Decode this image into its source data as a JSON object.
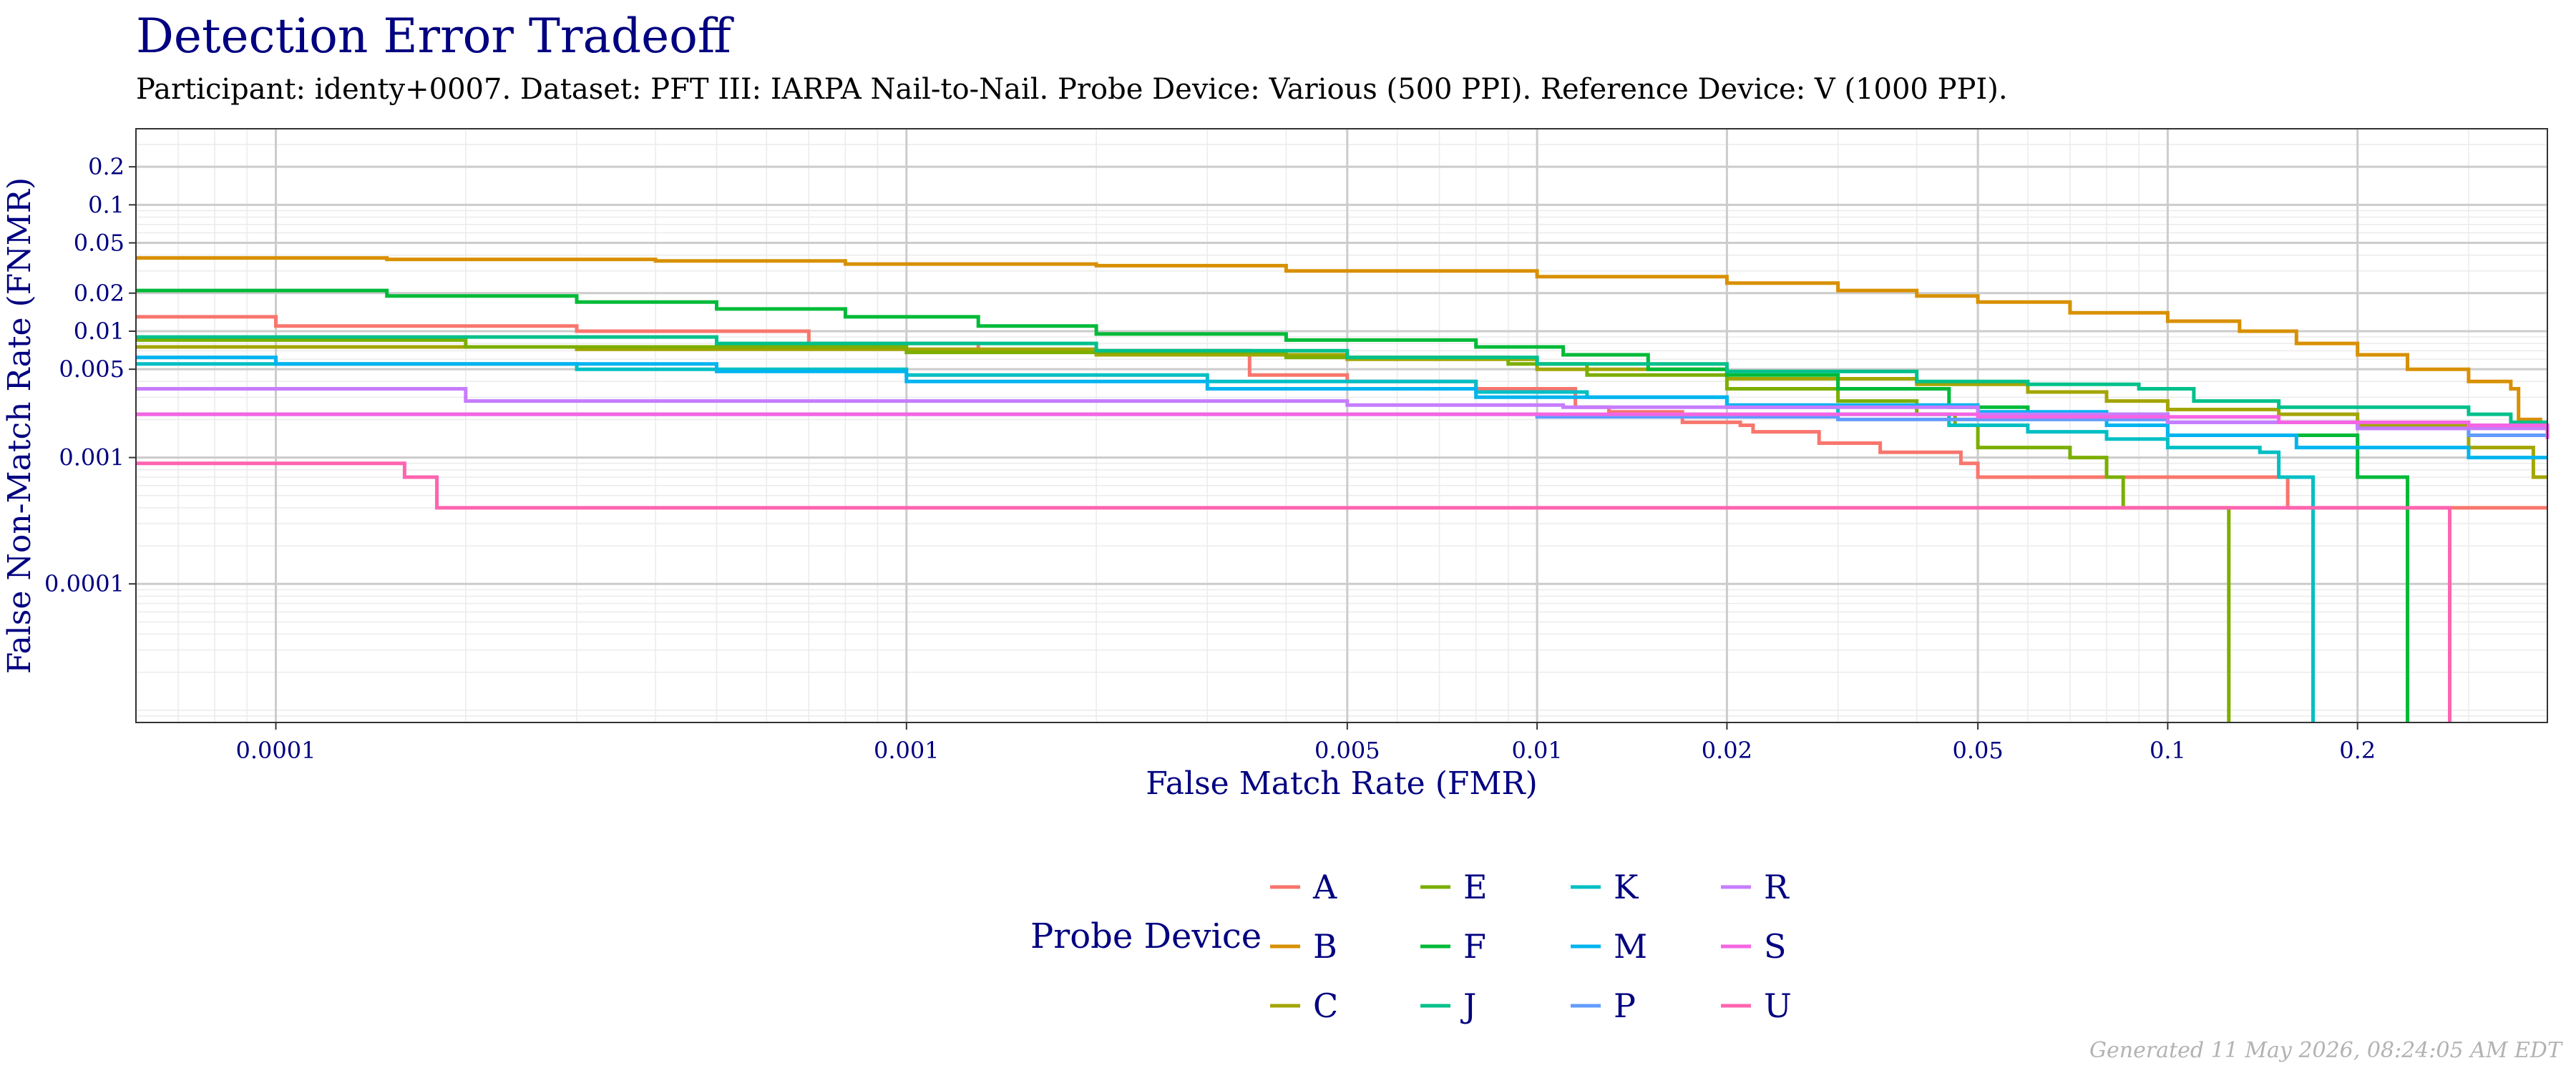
{
  "title": "Detection Error Tradeoff",
  "subtitle": "Participant: identy+0007. Dataset: PFT III: IARPA Nail-to-Nail. Probe Device: Various (500 PPI). Reference Device: V (1000 PPI).",
  "footer": "Generated 11 May 2026, 08:24:05 AM EDT",
  "chart_data": {
    "type": "line",
    "title": "Detection Error Tradeoff",
    "xlabel": "False Match Rate (FMR)",
    "ylabel": "False Non-Match Rate (FNMR)",
    "x_scale": "log",
    "y_scale": "log",
    "xlim": [
      6e-05,
      0.4
    ],
    "ylim": [
      8e-06,
      0.4
    ],
    "x_ticks": [
      {
        "v": 0.0001,
        "label": "0.0001"
      },
      {
        "v": 0.001,
        "label": "0.001"
      },
      {
        "v": 0.005,
        "label": "0.005"
      },
      {
        "v": 0.01,
        "label": "0.01"
      },
      {
        "v": 0.02,
        "label": "0.02"
      },
      {
        "v": 0.05,
        "label": "0.05"
      },
      {
        "v": 0.1,
        "label": "0.1"
      },
      {
        "v": 0.2,
        "label": "0.2"
      }
    ],
    "y_ticks": [
      {
        "v": 0.0001,
        "label": "0.0001"
      },
      {
        "v": 0.001,
        "label": "0.001"
      },
      {
        "v": 0.005,
        "label": "0.005"
      },
      {
        "v": 0.01,
        "label": "0.01"
      },
      {
        "v": 0.02,
        "label": "0.02"
      },
      {
        "v": 0.05,
        "label": "0.05"
      },
      {
        "v": 0.1,
        "label": "0.1"
      },
      {
        "v": 0.2,
        "label": "0.2"
      }
    ],
    "grid": true,
    "legend": {
      "title": "Probe Device",
      "position": "bottom"
    },
    "series": [
      {
        "name": "A",
        "color": "#F8766D",
        "points": [
          [
            6e-05,
            0.013
          ],
          [
            0.0001,
            0.011
          ],
          [
            0.0003,
            0.01
          ],
          [
            0.0007,
            0.008
          ],
          [
            0.0013,
            0.007
          ],
          [
            0.0035,
            0.0045
          ],
          [
            0.005,
            0.004
          ],
          [
            0.008,
            0.0035
          ],
          [
            0.0115,
            0.0025
          ],
          [
            0.013,
            0.0023
          ],
          [
            0.017,
            0.0019
          ],
          [
            0.021,
            0.0018
          ],
          [
            0.022,
            0.0016
          ],
          [
            0.028,
            0.0013
          ],
          [
            0.035,
            0.0011
          ],
          [
            0.047,
            0.0009
          ],
          [
            0.05,
            0.0007
          ],
          [
            0.15,
            0.0007
          ],
          [
            0.155,
            0.0004
          ],
          [
            0.4,
            0.0004
          ]
        ]
      },
      {
        "name": "B",
        "color": "#D89000",
        "points": [
          [
            6e-05,
            0.038
          ],
          [
            0.00015,
            0.037
          ],
          [
            0.0004,
            0.036
          ],
          [
            0.0008,
            0.034
          ],
          [
            0.002,
            0.033
          ],
          [
            0.004,
            0.03
          ],
          [
            0.01,
            0.027
          ],
          [
            0.02,
            0.024
          ],
          [
            0.03,
            0.021
          ],
          [
            0.04,
            0.019
          ],
          [
            0.05,
            0.017
          ],
          [
            0.07,
            0.014
          ],
          [
            0.1,
            0.012
          ],
          [
            0.13,
            0.01
          ],
          [
            0.16,
            0.008
          ],
          [
            0.2,
            0.0065
          ],
          [
            0.24,
            0.005
          ],
          [
            0.3,
            0.004
          ],
          [
            0.35,
            0.0035
          ],
          [
            0.36,
            0.002
          ],
          [
            0.39,
            0.0018
          ],
          [
            0.4,
            0.0018
          ]
        ]
      },
      {
        "name": "C",
        "color": "#A3A500",
        "points": [
          [
            6e-05,
            0.0075
          ],
          [
            0.0003,
            0.0072
          ],
          [
            0.002,
            0.0065
          ],
          [
            0.005,
            0.006
          ],
          [
            0.01,
            0.005
          ],
          [
            0.02,
            0.0042
          ],
          [
            0.04,
            0.0038
          ],
          [
            0.06,
            0.0033
          ],
          [
            0.08,
            0.0028
          ],
          [
            0.1,
            0.0024
          ],
          [
            0.15,
            0.0022
          ],
          [
            0.2,
            0.0018
          ],
          [
            0.3,
            0.0012
          ],
          [
            0.38,
            0.0007
          ],
          [
            0.4,
            0.0007
          ]
        ]
      },
      {
        "name": "E",
        "color": "#7CAE00",
        "points": [
          [
            6e-05,
            0.0085
          ],
          [
            0.0002,
            0.0075
          ],
          [
            0.001,
            0.0068
          ],
          [
            0.004,
            0.0062
          ],
          [
            0.009,
            0.0055
          ],
          [
            0.012,
            0.0045
          ],
          [
            0.02,
            0.0035
          ],
          [
            0.03,
            0.0028
          ],
          [
            0.04,
            0.0022
          ],
          [
            0.046,
            0.0018
          ],
          [
            0.05,
            0.0012
          ],
          [
            0.07,
            0.001
          ],
          [
            0.08,
            0.0007
          ],
          [
            0.085,
            0.0004
          ],
          [
            0.125,
            0.0004
          ],
          [
            0.125,
            8e-06
          ]
        ]
      },
      {
        "name": "F",
        "color": "#00BA38",
        "points": [
          [
            6e-05,
            0.021
          ],
          [
            0.00015,
            0.019
          ],
          [
            0.0003,
            0.017
          ],
          [
            0.0005,
            0.015
          ],
          [
            0.0008,
            0.013
          ],
          [
            0.0013,
            0.011
          ],
          [
            0.002,
            0.0095
          ],
          [
            0.004,
            0.0085
          ],
          [
            0.008,
            0.0075
          ],
          [
            0.011,
            0.0065
          ],
          [
            0.015,
            0.005
          ],
          [
            0.02,
            0.0045
          ],
          [
            0.03,
            0.0035
          ],
          [
            0.045,
            0.0025
          ],
          [
            0.06,
            0.0022
          ],
          [
            0.1,
            0.0015
          ],
          [
            0.2,
            0.0007
          ],
          [
            0.24,
            0.0007
          ],
          [
            0.24,
            8e-06
          ]
        ]
      },
      {
        "name": "J",
        "color": "#00C08B",
        "points": [
          [
            6e-05,
            0.009
          ],
          [
            0.0005,
            0.008
          ],
          [
            0.002,
            0.007
          ],
          [
            0.005,
            0.0062
          ],
          [
            0.01,
            0.0055
          ],
          [
            0.02,
            0.0048
          ],
          [
            0.04,
            0.004
          ],
          [
            0.06,
            0.0038
          ],
          [
            0.09,
            0.0035
          ],
          [
            0.11,
            0.0028
          ],
          [
            0.15,
            0.0025
          ],
          [
            0.22,
            0.0025
          ],
          [
            0.3,
            0.0022
          ],
          [
            0.35,
            0.0019
          ],
          [
            0.4,
            0.0019
          ]
        ]
      },
      {
        "name": "K",
        "color": "#00BFC4",
        "points": [
          [
            6e-05,
            0.0055
          ],
          [
            0.0003,
            0.005
          ],
          [
            0.001,
            0.0045
          ],
          [
            0.003,
            0.004
          ],
          [
            0.008,
            0.0033
          ],
          [
            0.012,
            0.003
          ],
          [
            0.02,
            0.0025
          ],
          [
            0.03,
            0.0022
          ],
          [
            0.045,
            0.0018
          ],
          [
            0.06,
            0.0016
          ],
          [
            0.08,
            0.0014
          ],
          [
            0.1,
            0.0012
          ],
          [
            0.14,
            0.0011
          ],
          [
            0.15,
            0.0007
          ],
          [
            0.17,
            0.0007
          ],
          [
            0.17,
            8e-06
          ]
        ]
      },
      {
        "name": "M",
        "color": "#00B4F0",
        "points": [
          [
            6e-05,
            0.0062
          ],
          [
            0.0001,
            0.0055
          ],
          [
            0.0005,
            0.0048
          ],
          [
            0.001,
            0.004
          ],
          [
            0.003,
            0.0035
          ],
          [
            0.008,
            0.003
          ],
          [
            0.02,
            0.0026
          ],
          [
            0.05,
            0.0023
          ],
          [
            0.08,
            0.0018
          ],
          [
            0.1,
            0.0015
          ],
          [
            0.16,
            0.0012
          ],
          [
            0.2,
            0.0012
          ],
          [
            0.3,
            0.001
          ],
          [
            0.4,
            0.001
          ]
        ]
      },
      {
        "name": "P",
        "color": "#619CFF",
        "points": [
          [
            6e-05,
            0.0022
          ],
          [
            0.003,
            0.0022
          ],
          [
            0.01,
            0.0021
          ],
          [
            0.03,
            0.002
          ],
          [
            0.1,
            0.0019
          ],
          [
            0.2,
            0.0017
          ],
          [
            0.3,
            0.0015
          ],
          [
            0.4,
            0.0015
          ]
        ]
      },
      {
        "name": "R",
        "color": "#C77CFF",
        "points": [
          [
            6e-05,
            0.0035
          ],
          [
            0.0002,
            0.0028
          ],
          [
            0.0013,
            0.0028
          ],
          [
            0.005,
            0.0026
          ],
          [
            0.011,
            0.0025
          ],
          [
            0.05,
            0.0022
          ],
          [
            0.1,
            0.0019
          ],
          [
            0.2,
            0.0017
          ],
          [
            0.4,
            0.0016
          ]
        ]
      },
      {
        "name": "S",
        "color": "#F564E3",
        "points": [
          [
            6e-05,
            0.0022
          ],
          [
            0.01,
            0.0022
          ],
          [
            0.05,
            0.0021
          ],
          [
            0.15,
            0.0019
          ],
          [
            0.3,
            0.0018
          ],
          [
            0.4,
            0.0014
          ]
        ]
      },
      {
        "name": "U",
        "color": "#FF64B0",
        "points": [
          [
            6e-05,
            0.0009
          ],
          [
            0.00015,
            0.0009
          ],
          [
            0.00016,
            0.0007
          ],
          [
            0.00018,
            0.0007
          ],
          [
            0.00018,
            0.0004
          ],
          [
            0.28,
            0.0004
          ],
          [
            0.28,
            8e-06
          ]
        ]
      }
    ]
  }
}
